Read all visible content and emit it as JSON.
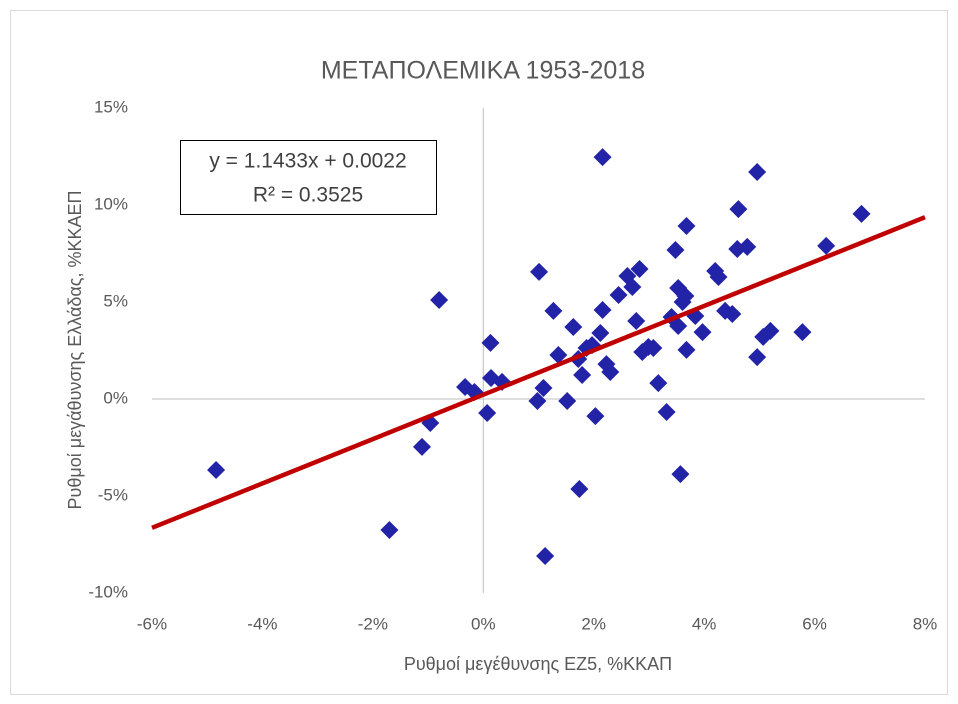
{
  "chart_data": {
    "type": "scatter",
    "title": "ΜΕΤΑΠΟΛΕΜΙΚΑ 1953-2018",
    "x_label": "Ρυθμοί μεγέθυνσης ΕΖ5, %ΚΚΑΠ",
    "y_label": "Ρυθμοί μεγάθυνσης Ελλάδας, %ΚΚΑΕΠ",
    "annotation": [
      "y = 1.1433x + 0.0022",
      "R² = 0.3525"
    ],
    "xlim": [
      -6,
      8
    ],
    "ylim": [
      -10,
      15
    ],
    "xticks": [
      {
        "value": -6,
        "label": "-6%"
      },
      {
        "value": -4,
        "label": "-4%"
      },
      {
        "value": -2,
        "label": "-2%"
      },
      {
        "value": 0,
        "label": "0%"
      },
      {
        "value": 2,
        "label": "2%"
      },
      {
        "value": 4,
        "label": "4%"
      },
      {
        "value": 6,
        "label": "6%"
      },
      {
        "value": 8,
        "label": "8%"
      }
    ],
    "yticks": [
      {
        "value": -10,
        "label": "-10%"
      },
      {
        "value": -5,
        "label": "-5%"
      },
      {
        "value": 0,
        "label": "0%"
      },
      {
        "value": 5,
        "label": "5%"
      },
      {
        "value": 10,
        "label": "10%"
      },
      {
        "value": 15,
        "label": "15%"
      }
    ],
    "series": [
      {
        "color": "#2323a8",
        "x": [
          -4.84,
          -1.7,
          -1.11,
          -0.96,
          -0.8,
          -0.33,
          -0.16,
          0.07,
          0.13,
          0.14,
          0.34,
          1.01,
          0.98,
          1.09,
          1.12,
          1.27,
          1.36,
          1.52,
          1.63,
          1.72,
          1.74,
          1.79,
          1.87,
          1.97,
          2.03,
          2.12,
          2.16,
          2.16,
          2.23,
          2.3,
          2.45,
          2.61,
          2.7,
          2.77,
          2.83,
          2.88,
          2.99,
          3.08,
          3.17,
          3.32,
          3.41,
          3.48,
          3.53,
          3.53,
          3.57,
          3.61,
          3.66,
          3.68,
          3.68,
          3.84,
          3.97,
          4.2,
          4.26,
          4.38,
          4.51,
          4.6,
          4.62,
          4.78,
          4.96,
          4.96,
          5.07,
          5.2,
          5.78,
          6.21,
          6.85
        ],
        "values": [
          -3.66,
          -6.75,
          -2.47,
          -1.24,
          5.1,
          0.62,
          0.36,
          -0.72,
          2.89,
          1.08,
          0.88,
          6.55,
          -0.1,
          0.57,
          -8.09,
          4.54,
          2.27,
          -0.1,
          3.71,
          2.06,
          -4.64,
          1.24,
          2.63,
          2.78,
          -0.88,
          3.4,
          4.59,
          12.47,
          1.8,
          1.39,
          5.36,
          6.34,
          5.77,
          4.02,
          6.7,
          2.42,
          2.68,
          2.63,
          0.82,
          -0.67,
          4.23,
          7.68,
          5.72,
          3.76,
          -3.87,
          5.0,
          5.31,
          2.53,
          8.92,
          4.28,
          3.45,
          6.6,
          6.29,
          4.54,
          4.38,
          7.73,
          9.79,
          7.84,
          11.7,
          2.16,
          3.2,
          3.51,
          3.45,
          7.89,
          9.54
        ]
      }
    ],
    "trendline": {
      "color": "#c00000",
      "x": [
        -6,
        8
      ],
      "values": [
        -6.64,
        9.37
      ]
    }
  }
}
